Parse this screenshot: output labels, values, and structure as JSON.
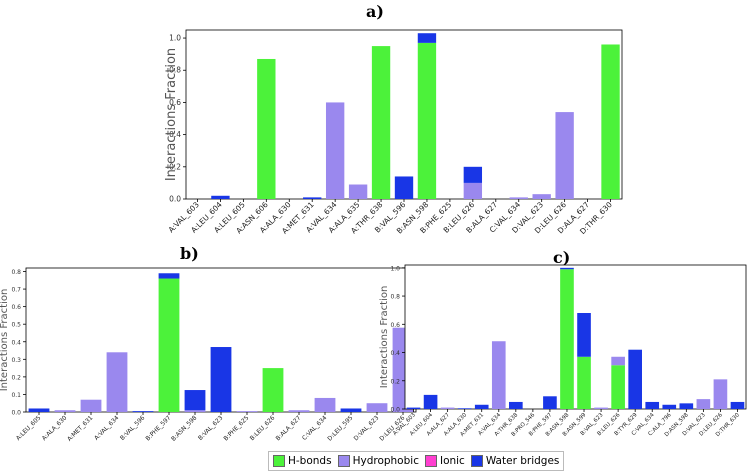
{
  "panels": {
    "a": "a)",
    "b": "b)",
    "c": "c)"
  },
  "colors": {
    "hbonds": "#4cf23a",
    "hydrophobic": "#9a88ee",
    "ionic": "#ff3fd0",
    "water": "#1936e6"
  },
  "legend": {
    "hbonds": "H-bonds",
    "hydrophobic": "Hydrophobic",
    "ionic": "Ionic",
    "water": "Water bridges"
  },
  "chart_data": [
    {
      "type": "bar",
      "panel": "a)",
      "ylabel": "Interactions Fraction",
      "ylim": [
        0,
        1.05
      ],
      "yticks": [
        0.0,
        0.2,
        0.4,
        0.6,
        0.8,
        1.0
      ],
      "ytick_labels": [
        "0.0",
        "0.2",
        "0.4",
        "0.6",
        "0.8",
        "1.0"
      ],
      "categories": [
        "A:VAL_603",
        "A:LEU_604",
        "A:LEU_605",
        "A:ASN_606",
        "A:ALA_630",
        "A:MET_631",
        "A:VAL_634",
        "A:ALA_635",
        "A:THR_638",
        "B:VAL_596",
        "B:ASN_598",
        "B:PHE_625",
        "B:LEU_626",
        "B:ALA_627",
        "C:VAL_634",
        "D:VAL_623",
        "D:LEU_626",
        "D:ALA_627",
        "D:THR_630"
      ],
      "series": [
        {
          "name": "H-bonds",
          "values": [
            0,
            0,
            0,
            0.87,
            0,
            0,
            0,
            0,
            0.95,
            0,
            0.97,
            0,
            0,
            0,
            0,
            0,
            0,
            0,
            0.96
          ]
        },
        {
          "name": "Hydrophobic",
          "values": [
            0,
            0,
            0,
            0,
            0,
            0,
            0.6,
            0.09,
            0,
            0,
            0,
            0,
            0.1,
            0,
            0.01,
            0.03,
            0.54,
            0,
            0
          ]
        },
        {
          "name": "Ionic",
          "values": [
            0,
            0,
            0,
            0,
            0,
            0,
            0,
            0,
            0,
            0,
            0,
            0,
            0,
            0,
            0,
            0,
            0,
            0,
            0
          ]
        },
        {
          "name": "Water bridges",
          "values": [
            0,
            0.02,
            0,
            0,
            0,
            0.01,
            0,
            0,
            0,
            0.14,
            0.06,
            0,
            0.1,
            0,
            0,
            0,
            0,
            0,
            0
          ]
        }
      ]
    },
    {
      "type": "bar",
      "panel": "b)",
      "ylabel": "Interactions Fraction",
      "ylim": [
        0,
        0.82
      ],
      "yticks": [
        0.0,
        0.1,
        0.2,
        0.3,
        0.4,
        0.5,
        0.6,
        0.7,
        0.8
      ],
      "ytick_labels": [
        "0.0",
        "0.1",
        "0.2",
        "0.3",
        "0.4",
        "0.5",
        "0.6",
        "0.7",
        "0.8"
      ],
      "categories": [
        "A:LEU_605",
        "A:ALA_630",
        "A:MET_631",
        "A:VAL_634",
        "B:VAL_596",
        "B:PHE_597",
        "B:ASN_598",
        "B:VAL_623",
        "B:PHE_625",
        "B:LEU_626",
        "B:ALA_627",
        "C:VAL_634",
        "D:LEU_595",
        "D:VAL_623",
        "D:LEU_626"
      ],
      "series": [
        {
          "name": "H-bonds",
          "values": [
            0,
            0,
            0,
            0,
            0,
            0.76,
            0,
            0,
            0,
            0.25,
            0,
            0,
            0,
            0,
            0
          ]
        },
        {
          "name": "Hydrophobic",
          "values": [
            0,
            0.01,
            0.07,
            0.34,
            0,
            0,
            0.01,
            0,
            0.005,
            0,
            0.01,
            0.08,
            0,
            0.05,
            0.48
          ]
        },
        {
          "name": "Ionic",
          "values": [
            0,
            0,
            0,
            0,
            0,
            0,
            0,
            0,
            0,
            0,
            0,
            0,
            0,
            0,
            0
          ]
        },
        {
          "name": "Water bridges",
          "values": [
            0.02,
            0,
            0,
            0,
            0.005,
            0.03,
            0.115,
            0.37,
            0,
            0,
            0,
            0,
            0.02,
            0,
            0
          ]
        }
      ]
    },
    {
      "type": "bar",
      "panel": "c)",
      "ylabel": "Interactions Fraction",
      "ylim": [
        0,
        1.02
      ],
      "yticks": [
        0.0,
        0.2,
        0.4,
        0.6,
        0.8,
        1.0
      ],
      "ytick_labels": [
        "0.0",
        "0.2",
        "0.4",
        "0.6",
        "0.8",
        "1.0"
      ],
      "categories": [
        "A:VAL_603",
        "A:LEU_604",
        "A:ALA_627",
        "A:ALA_630",
        "A:MET_631",
        "A:VAL_634",
        "A:THR_638",
        "B:PRO_546",
        "B:PHE_597",
        "B:ASN_598",
        "B:ASN_599",
        "B:VAL_623",
        "B:LEU_626",
        "B:TYR_629",
        "C:VAL_634",
        "C:ALA_796",
        "D:ASN_598",
        "D:VAL_623",
        "D:LEU_626",
        "D:THR_630"
      ],
      "series": [
        {
          "name": "H-bonds",
          "values": [
            0,
            0,
            0,
            0,
            0,
            0,
            0,
            0,
            0,
            0.99,
            0.37,
            0,
            0.31,
            0,
            0,
            0,
            0,
            0,
            0,
            0
          ]
        },
        {
          "name": "Hydrophobic",
          "values": [
            0,
            0,
            0.01,
            0,
            0,
            0.48,
            0,
            0,
            0,
            0,
            0,
            0.01,
            0.06,
            0,
            0,
            0,
            0,
            0.07,
            0.21,
            0
          ]
        },
        {
          "name": "Ionic",
          "values": [
            0,
            0,
            0,
            0,
            0,
            0,
            0,
            0,
            0,
            0,
            0,
            0,
            0,
            0,
            0,
            0,
            0,
            0,
            0,
            0
          ]
        },
        {
          "name": "Water bridges",
          "values": [
            0.01,
            0.1,
            0,
            0.005,
            0.03,
            0,
            0.05,
            0,
            0.09,
            0.01,
            0.31,
            0,
            0,
            0.42,
            0.05,
            0.03,
            0.04,
            0,
            0,
            0.05
          ]
        }
      ]
    }
  ]
}
